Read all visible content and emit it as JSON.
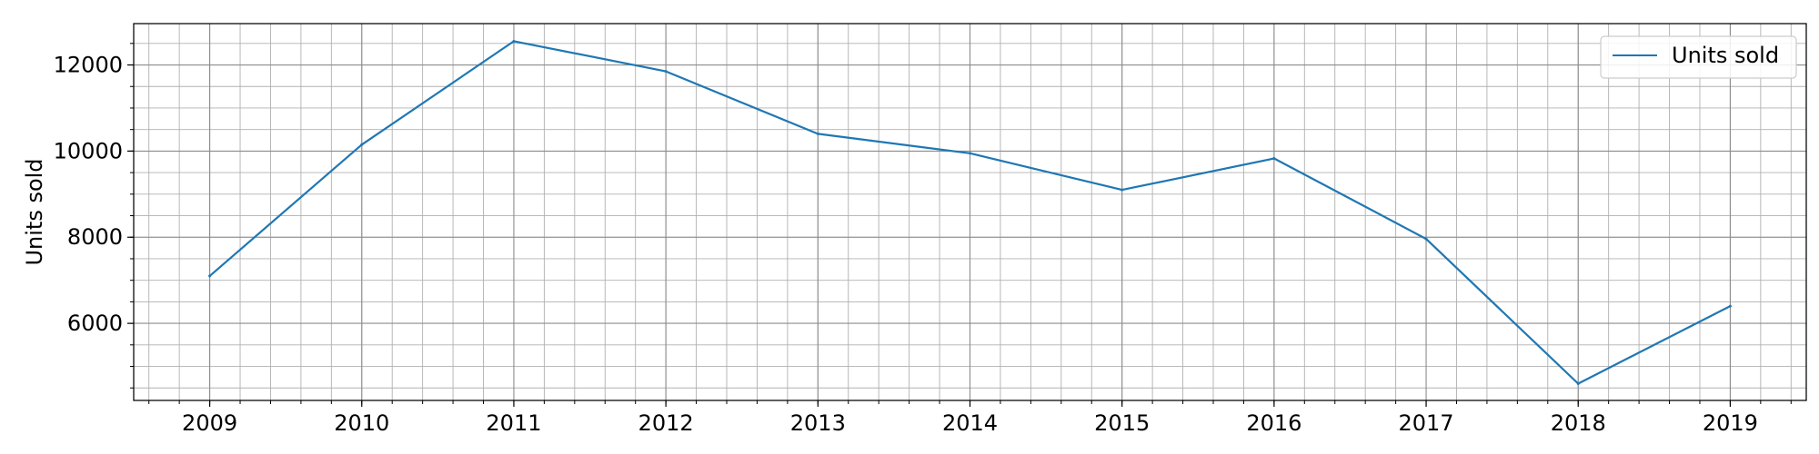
{
  "chart_data": {
    "type": "line",
    "title": "",
    "xlabel": "",
    "ylabel": "Units sold",
    "x": [
      2009,
      2010,
      2011,
      2012,
      2013,
      2014,
      2015,
      2016,
      2017,
      2018,
      2019
    ],
    "x_tick_labels": [
      "2009",
      "2010",
      "2011",
      "2012",
      "2013",
      "2014",
      "2015",
      "2016",
      "2017",
      "2018",
      "2019"
    ],
    "xlim": [
      2008.5,
      2019.5
    ],
    "y_ticks": [
      6000,
      8000,
      10000,
      12000
    ],
    "y_tick_labels": [
      "6000",
      "8000",
      "10000",
      "12000"
    ],
    "ylim": [
      4210,
      12960
    ],
    "grid": true,
    "minor_grid": true,
    "legend_position": "top-right",
    "series": [
      {
        "name": "Units sold",
        "color": "#1f77b4",
        "values": [
          7100,
          10150,
          12550,
          11850,
          10400,
          9950,
          9100,
          9830,
          7960,
          4600,
          6400
        ]
      }
    ]
  }
}
